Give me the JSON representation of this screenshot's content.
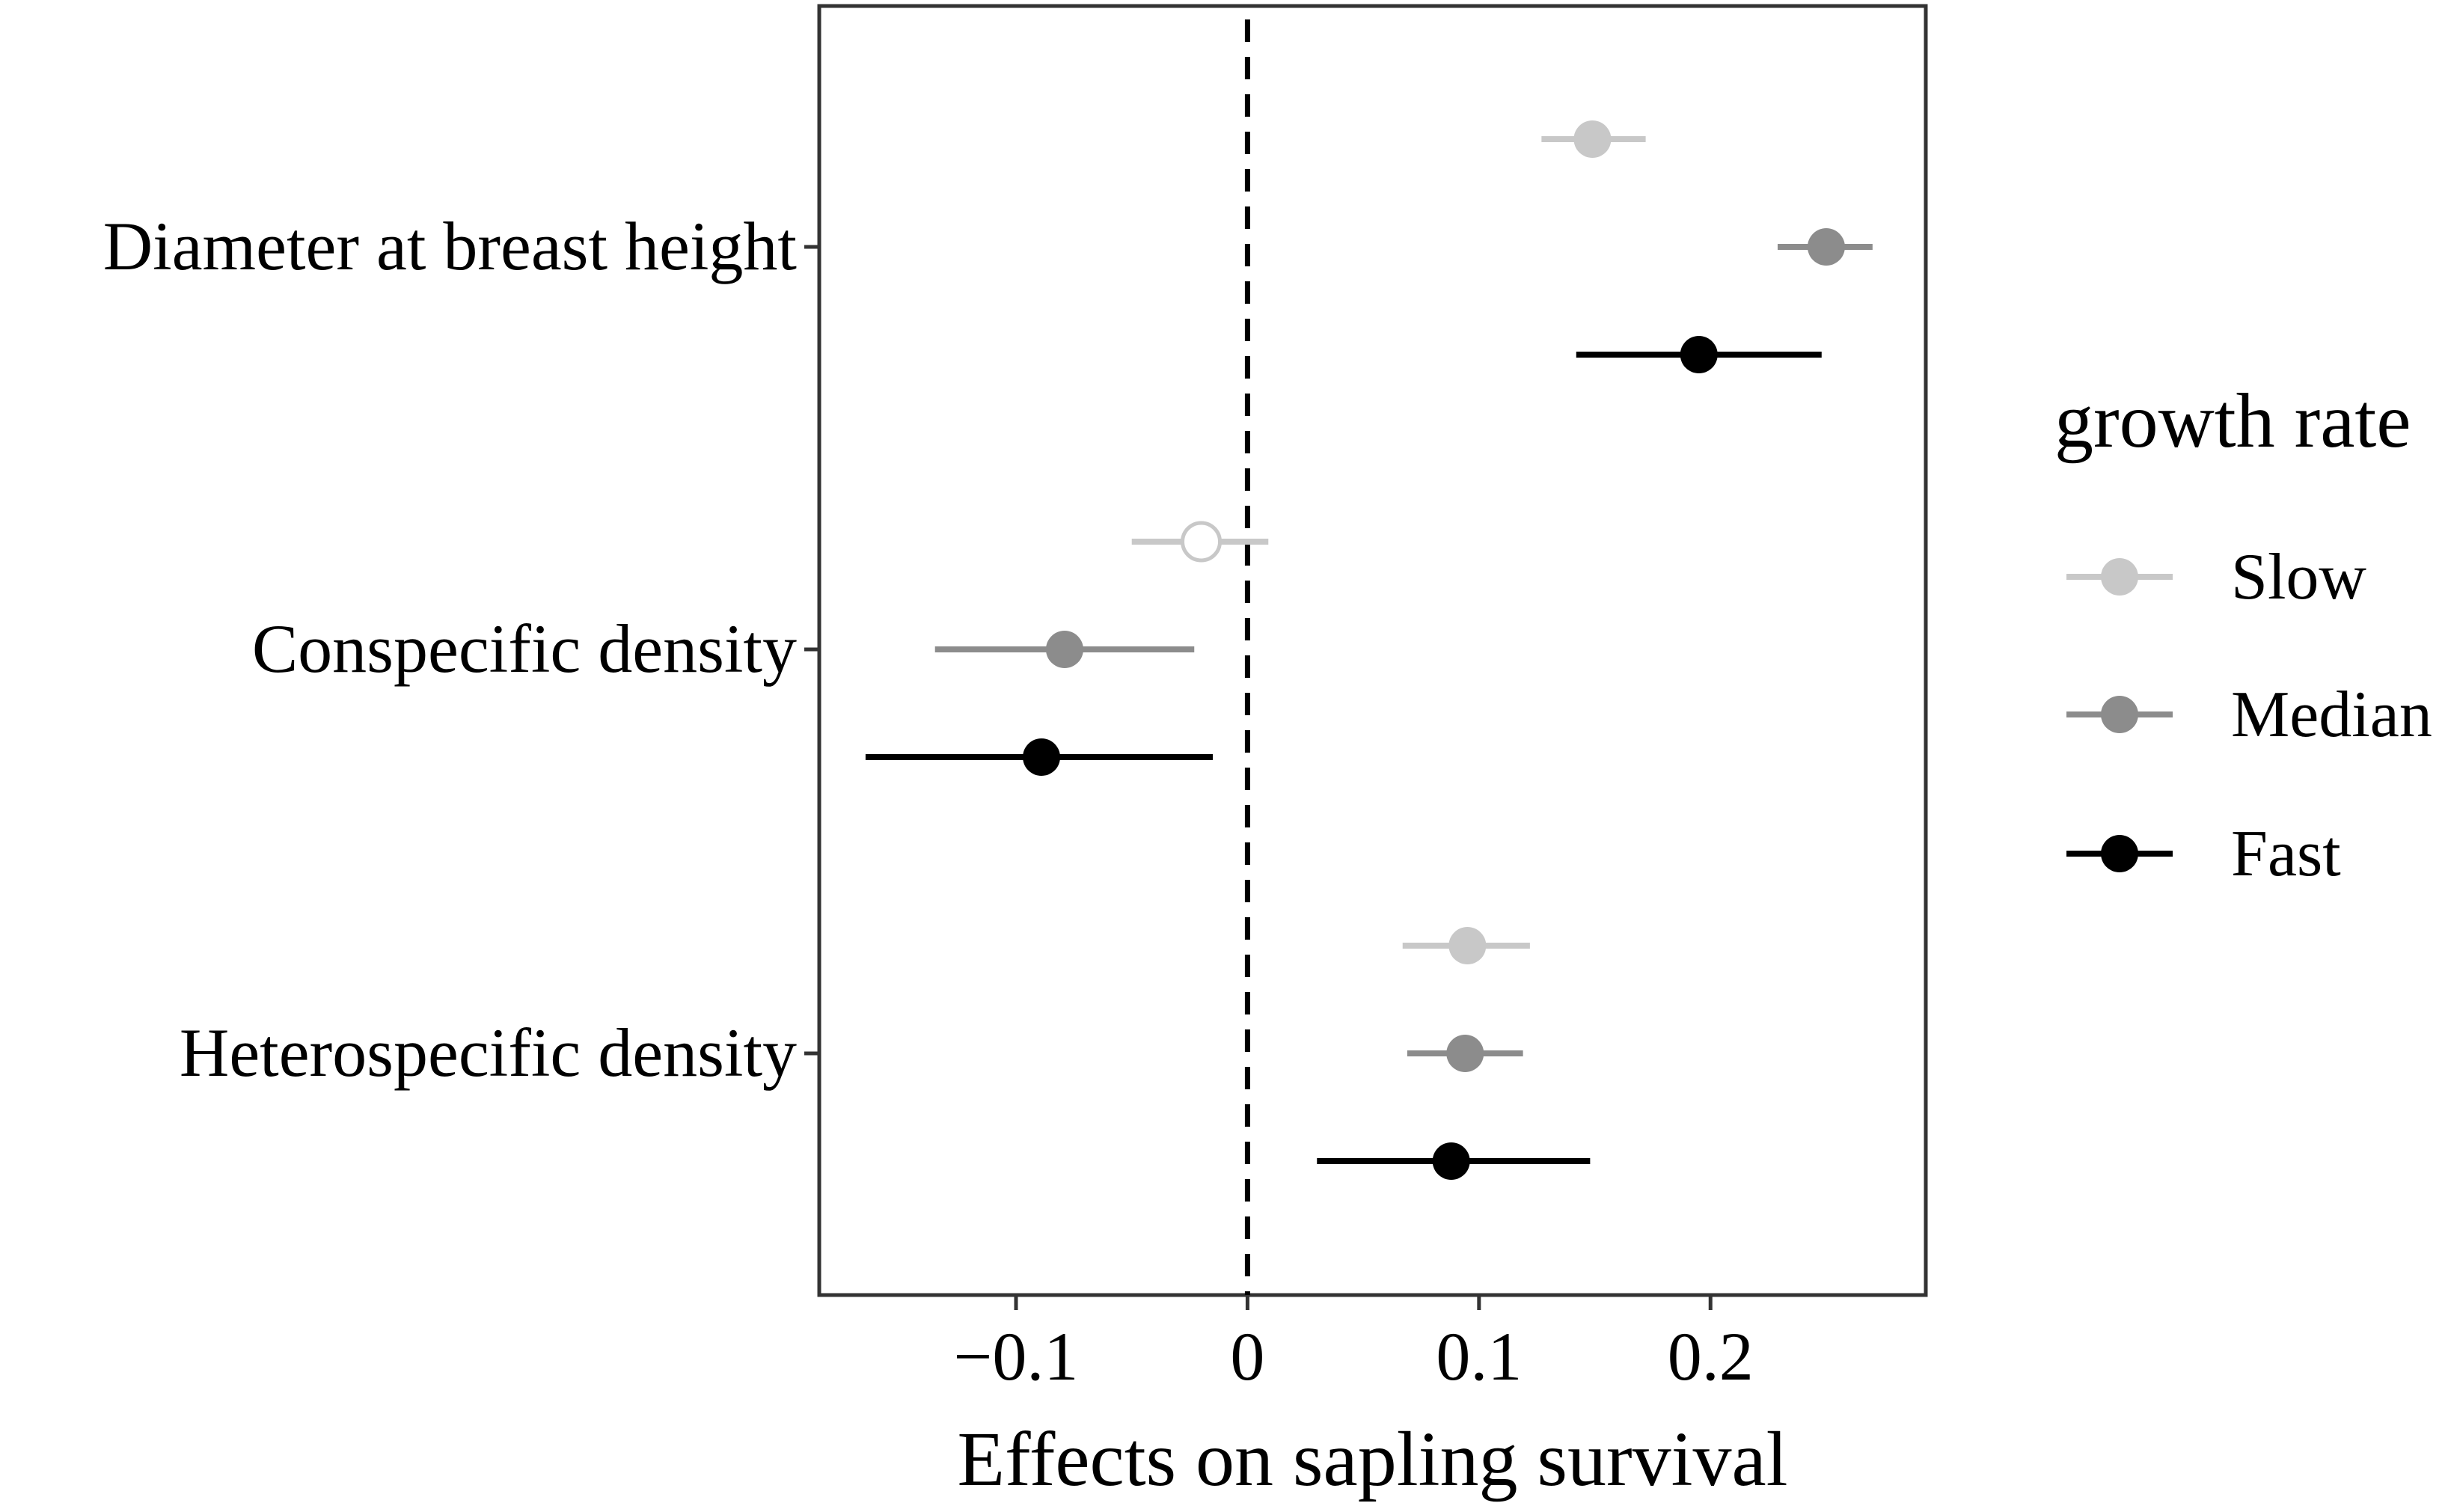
{
  "chart_data": {
    "type": "scatter",
    "subtype": "point-range (coefficient plot)",
    "orientation": "horizontal",
    "xlabel": "Effects on sapling survival",
    "xlim": [
      -0.185,
      0.293
    ],
    "xticks": [
      -0.1,
      0,
      0.1,
      0.2
    ],
    "xtick_labels": [
      "−0.1",
      "0",
      "0.1",
      "0.2"
    ],
    "reference_line": {
      "x": 0,
      "style": "dashed"
    },
    "grid": false,
    "categories": [
      "Diameter at breast height",
      "Conspecific density",
      "Heterospecific density"
    ],
    "legend": {
      "title": "growth rate",
      "placement": "right"
    },
    "series": [
      {
        "name": "Slow",
        "color": "#c8c8c8",
        "points": [
          {
            "category": "Diameter at breast height",
            "estimate": 0.149,
            "lower": 0.127,
            "upper": 0.172,
            "filled": true
          },
          {
            "category": "Conspecific density",
            "estimate": -0.02,
            "lower": -0.05,
            "upper": 0.009,
            "filled": false
          },
          {
            "category": "Heterospecific density",
            "estimate": 0.095,
            "lower": 0.067,
            "upper": 0.122,
            "filled": true
          }
        ]
      },
      {
        "name": "Median",
        "color": "#8c8c8c",
        "points": [
          {
            "category": "Diameter at breast height",
            "estimate": 0.25,
            "lower": 0.229,
            "upper": 0.27,
            "filled": true
          },
          {
            "category": "Conspecific density",
            "estimate": -0.079,
            "lower": -0.135,
            "upper": -0.023,
            "filled": true
          },
          {
            "category": "Heterospecific density",
            "estimate": 0.094,
            "lower": 0.069,
            "upper": 0.119,
            "filled": true
          }
        ]
      },
      {
        "name": "Fast",
        "color": "#000000",
        "points": [
          {
            "category": "Diameter at breast height",
            "estimate": 0.195,
            "lower": 0.142,
            "upper": 0.248,
            "filled": true
          },
          {
            "category": "Conspecific density",
            "estimate": -0.089,
            "lower": -0.165,
            "upper": -0.015,
            "filled": true
          },
          {
            "category": "Heterospecific density",
            "estimate": 0.088,
            "lower": 0.03,
            "upper": 0.148,
            "filled": true
          }
        ]
      }
    ]
  }
}
